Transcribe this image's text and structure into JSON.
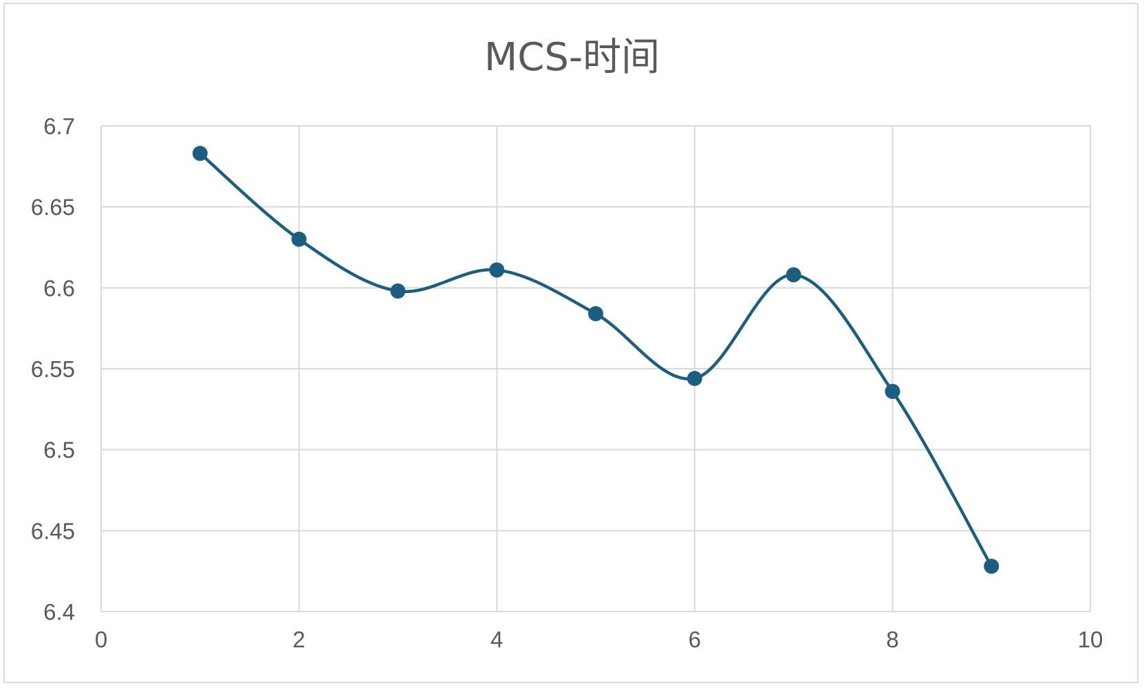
{
  "chart_data": {
    "type": "scatter",
    "title": "MCS-时间",
    "xlabel": "",
    "ylabel": "",
    "xlim": [
      0,
      10
    ],
    "ylim": [
      6.4,
      6.7
    ],
    "x_ticks": [
      0,
      2,
      4,
      6,
      8,
      10
    ],
    "y_ticks": [
      6.4,
      6.45,
      6.5,
      6.55,
      6.6,
      6.65,
      6.7
    ],
    "x_tick_labels": [
      "0",
      "2",
      "4",
      "6",
      "8",
      "10"
    ],
    "y_tick_labels": [
      "6.4",
      "6.45",
      "6.5",
      "6.55",
      "6.6",
      "6.65",
      "6.7"
    ],
    "grid": true,
    "smooth_line": true,
    "markers": true,
    "series": [
      {
        "color": "#1a5e80",
        "x": [
          1,
          2,
          3,
          4,
          5,
          6,
          7,
          8,
          9
        ],
        "y": [
          6.683,
          6.63,
          6.598,
          6.611,
          6.584,
          6.544,
          6.608,
          6.536,
          6.428
        ]
      }
    ],
    "colors": {
      "grid": "#d9d9d9",
      "text": "#595959",
      "frame": "#d9d9d9"
    }
  }
}
